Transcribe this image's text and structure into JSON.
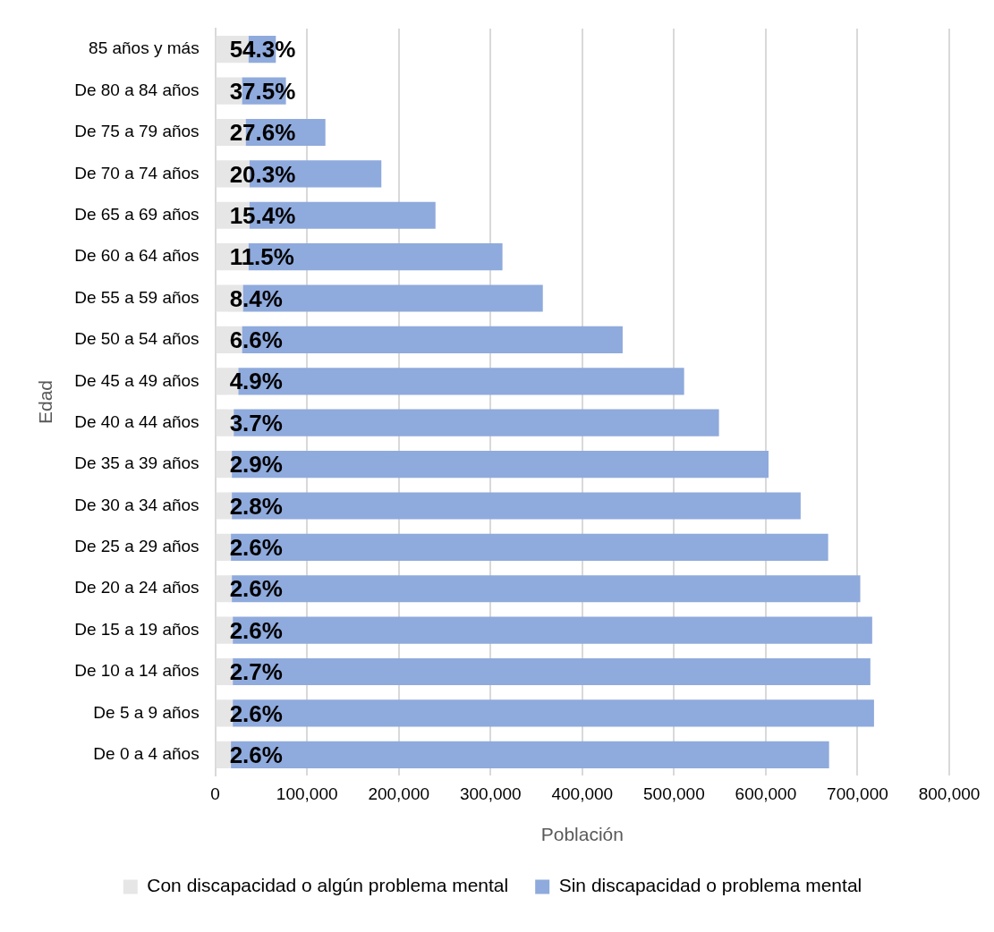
{
  "chart_data": {
    "type": "bar",
    "orientation": "horizontal",
    "stacked": true,
    "categories": [
      "85 años y más",
      "De 80 a 84 años",
      "De 75 a 79 años",
      "De 70 a 74 años",
      "De 65 a 69 años",
      "De 60 a 64 años",
      "De 55 a 59 años",
      "De 50 a 54 años",
      "De 45 a 49 años",
      "De 40 a 44 años",
      "De 35 a 39 años",
      "De 30 a 34 años",
      "De 25 a 29 años",
      "De 20 a 24 años",
      "De 15 a 19 años",
      "De 10 a 14 años",
      "De 5 a 9 años",
      "De 0 a 4 años"
    ],
    "series": [
      {
        "name": "Con discapacidad o algún problema mental",
        "color": "#e7e6e6",
        "values": [
          36000,
          29000,
          33000,
          37000,
          37000,
          36000,
          30000,
          29000,
          25000,
          20000,
          18000,
          18000,
          17000,
          18000,
          19000,
          19000,
          19000,
          17000
        ]
      },
      {
        "name": "Sin discapacidad o problema mental",
        "color": "#8faadc",
        "values": [
          30000,
          48000,
          87000,
          144000,
          203000,
          277000,
          327000,
          415000,
          486000,
          529000,
          585000,
          620000,
          651000,
          685000,
          697000,
          695000,
          699000,
          652000
        ]
      }
    ],
    "annotations": [
      {
        "text": "54.3%",
        "y": "85 años y más"
      },
      {
        "text": "37.5%",
        "y": "De 80 a 84 años"
      },
      {
        "text": "27.6%",
        "y": "De 75 a 79 años"
      },
      {
        "text": "20.3%",
        "y": "De 70 a 74 años"
      },
      {
        "text": "15.4%",
        "y": "De 65 a 69 años"
      },
      {
        "text": "11.5%",
        "y": "De 60 a 64 años"
      },
      {
        "text": "8.4%",
        "y": "De 55 a 59 años"
      },
      {
        "text": "6.6%",
        "y": "De 50 a 54 años"
      },
      {
        "text": "4.9%",
        "y": "De 45 a 49 años"
      },
      {
        "text": "3.7%",
        "y": "De 40 a 44 años"
      },
      {
        "text": "2.9%",
        "y": "De 35 a 39 años"
      },
      {
        "text": "2.8%",
        "y": "De 30 a 34 años"
      },
      {
        "text": "2.6%",
        "y": "De 25 a 29 años"
      },
      {
        "text": "2.6%",
        "y": "De 20 a 24 años"
      },
      {
        "text": "2.6%",
        "y": "De 15 a 19 años"
      },
      {
        "text": "2.7%",
        "y": "De 10 a 14 años"
      },
      {
        "text": "2.6%",
        "y": "De 5 a 9 años"
      },
      {
        "text": "2.6%",
        "y": "De 0 a 4 años"
      }
    ],
    "xlim": [
      0,
      800000
    ],
    "xticks": [
      0,
      {
        "value": 100000,
        "label": "100,000"
      },
      {
        "value": 200000,
        "label": "200,000"
      },
      {
        "value": 300000,
        "label": "300,000"
      },
      {
        "value": 400000,
        "label": "400,000"
      },
      {
        "value": 500000,
        "label": "500,000"
      },
      {
        "value": 600000,
        "label": "600,000"
      },
      {
        "value": 700000,
        "label": "700,000"
      },
      {
        "value": 800000,
        "label": "800,000"
      }
    ],
    "xlabel": "Población",
    "ylabel": "Edad",
    "grid": "x",
    "legend": "bottom"
  }
}
